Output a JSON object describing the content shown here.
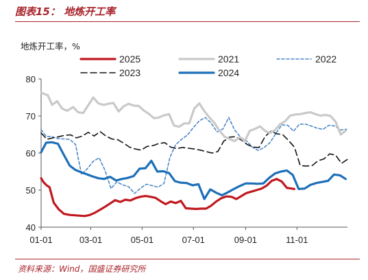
{
  "title": "图表15：  地炼开工率",
  "source": "资料来源：Wind，国盛证券研究所",
  "colors": {
    "accent": "#a8232b"
  },
  "chart_data": {
    "type": "line",
    "ylabel": "地炼开工率，%",
    "ylim": [
      40,
      80
    ],
    "yticks": [
      "40",
      "50",
      "60",
      "70",
      "80"
    ],
    "xticks": [
      "01-01",
      "03-01",
      "05-01",
      "07-01",
      "09-01",
      "11-01"
    ],
    "xlim": [
      "01-01",
      "12-31"
    ],
    "grid": false,
    "legend": "top",
    "series": [
      {
        "name": "2025",
        "color": "#c0181f",
        "dash": "solid",
        "width": 3.2,
        "x": [
          "01-01",
          "01-04",
          "01-08",
          "01-11",
          "01-16",
          "01-22",
          "01-28",
          "02-04",
          "02-10",
          "02-16",
          "02-22",
          "02-28",
          "03-06",
          "03-12",
          "03-18",
          "03-24",
          "03-30",
          "04-05",
          "04-11",
          "04-17",
          "04-23",
          "04-29",
          "05-05",
          "05-11",
          "05-17",
          "05-23",
          "05-29",
          "06-04",
          "06-10",
          "06-16",
          "06-22",
          "06-28",
          "07-04",
          "07-10",
          "07-16",
          "07-22",
          "07-28",
          "08-03",
          "08-09",
          "08-15",
          "08-21",
          "08-27",
          "09-02",
          "09-08",
          "09-14",
          "09-20",
          "09-26",
          "10-02",
          "10-08",
          "10-14",
          "10-20",
          "10-26",
          "10-29"
        ],
        "y": [
          53.2,
          52.1,
          51.2,
          50.8,
          46.6,
          44.8,
          43.6,
          43.3,
          43.2,
          43.1,
          43.0,
          43.3,
          43.9,
          44.7,
          45.5,
          46.4,
          47.3,
          46.8,
          47.4,
          47.2,
          47.8,
          48.2,
          48.4,
          48.2,
          47.9,
          47.0,
          46.2,
          46.9,
          46.5,
          47.1,
          45.1,
          45.0,
          44.9,
          45.0,
          45.0,
          45.8,
          46.9,
          47.8,
          48.3,
          48.2,
          47.6,
          48.4,
          49.2,
          49.6,
          50.0,
          50.4,
          51.2,
          52.5,
          53.0,
          52.3,
          50.6,
          50.4,
          50.3
        ]
      },
      {
        "name": "2021",
        "color": "#c9c9c9",
        "dash": "solid",
        "width": 3.2,
        "x": [
          "01-01",
          "01-05",
          "01-09",
          "01-14",
          "01-20",
          "01-26",
          "02-01",
          "02-08",
          "02-14",
          "02-20",
          "02-26",
          "03-04",
          "03-10",
          "03-16",
          "03-22",
          "03-28",
          "04-03",
          "04-09",
          "04-15",
          "04-21",
          "04-27",
          "05-03",
          "05-09",
          "05-15",
          "05-21",
          "05-27",
          "06-02",
          "06-08",
          "06-14",
          "06-20",
          "06-26",
          "07-02",
          "07-08",
          "07-14",
          "07-20",
          "07-26",
          "08-01",
          "08-07",
          "08-13",
          "08-19",
          "08-25",
          "08-31",
          "09-06",
          "09-12",
          "09-18",
          "09-24",
          "09-30",
          "10-06",
          "10-12",
          "10-18",
          "10-24",
          "10-30",
          "11-05",
          "11-11",
          "11-17",
          "11-23",
          "11-29",
          "12-05",
          "12-11",
          "12-17",
          "12-23",
          "12-29"
        ],
        "y": [
          76.3,
          75.9,
          75.6,
          73.0,
          74.0,
          72.0,
          71.4,
          72.4,
          71.0,
          70.8,
          72.9,
          75.0,
          73.4,
          73.0,
          73.3,
          73.5,
          71.2,
          72.6,
          73.3,
          72.8,
          72.7,
          71.5,
          70.6,
          69.4,
          69.6,
          70.2,
          70.5,
          67.4,
          67.1,
          68.0,
          68.0,
          72.0,
          73.4,
          71.3,
          69.6,
          68.1,
          66.0,
          64.4,
          63.8,
          63.2,
          64.3,
          63.2,
          66.0,
          66.5,
          67.2,
          66.0,
          65.4,
          66.2,
          67.8,
          68.6,
          70.1,
          70.4,
          70.5,
          70.8,
          71.0,
          70.5,
          70.1,
          70.3,
          70.0,
          68.4,
          65.0,
          66.0
        ]
      },
      {
        "name": "2022",
        "color": "#4a86c8",
        "dash": "dash",
        "width": 1.6,
        "x": [
          "01-01",
          "01-07",
          "01-14",
          "01-21",
          "01-28",
          "02-04",
          "02-11",
          "02-18",
          "02-25",
          "03-04",
          "03-11",
          "03-18",
          "03-25",
          "04-01",
          "04-08",
          "04-15",
          "04-22",
          "04-29",
          "05-06",
          "05-13",
          "05-20",
          "05-27",
          "06-03",
          "06-10",
          "06-17",
          "06-24",
          "07-01",
          "07-08",
          "07-15",
          "07-22",
          "07-29",
          "08-05",
          "08-12",
          "08-19",
          "08-26",
          "09-02",
          "09-09",
          "09-16",
          "09-23",
          "09-30",
          "10-07",
          "10-14",
          "10-21",
          "10-28",
          "11-04",
          "11-11",
          "11-18",
          "11-25",
          "12-02",
          "12-09",
          "12-16",
          "12-23",
          "12-30"
        ],
        "y": [
          66.3,
          64.5,
          64.4,
          63.9,
          63.8,
          63.7,
          62.3,
          54.2,
          55.8,
          57.8,
          58.7,
          55.3,
          50.4,
          52.2,
          51.4,
          50.9,
          49.1,
          50.5,
          51.6,
          51.2,
          50.8,
          51.8,
          58.8,
          62.3,
          63.7,
          64.9,
          66.9,
          68.7,
          69.6,
          68.1,
          65.7,
          66.5,
          69.6,
          66.2,
          64.3,
          63.3,
          61.6,
          60.7,
          61.5,
          62.8,
          65.3,
          67.6,
          67.5,
          65.9,
          67.8,
          67.8,
          67.3,
          66.7,
          66.4,
          67.5,
          67.3,
          66.2,
          66.4
        ]
      },
      {
        "name": "2023",
        "color": "#111111",
        "dash": "longdash",
        "width": 1.6,
        "x": [
          "01-01",
          "01-08",
          "01-15",
          "01-22",
          "01-29",
          "02-05",
          "02-12",
          "02-19",
          "02-26",
          "03-05",
          "03-12",
          "03-19",
          "03-26",
          "04-02",
          "04-09",
          "04-16",
          "04-23",
          "04-30",
          "05-07",
          "05-14",
          "05-21",
          "05-28",
          "06-04",
          "06-11",
          "06-18",
          "06-25",
          "07-02",
          "07-09",
          "07-16",
          "07-23",
          "07-30",
          "08-06",
          "08-13",
          "08-20",
          "08-27",
          "09-03",
          "09-10",
          "09-17",
          "09-24",
          "10-01",
          "10-08",
          "10-15",
          "10-22",
          "10-29",
          "11-05",
          "11-12",
          "11-19",
          "11-26",
          "12-03",
          "12-10",
          "12-17",
          "12-24",
          "12-31"
        ],
        "y": [
          65.4,
          63.7,
          64.1,
          64.4,
          64.8,
          64.9,
          64.1,
          64.6,
          65.6,
          64.6,
          65.8,
          64.6,
          63.8,
          63.6,
          62.7,
          61.6,
          61.1,
          60.8,
          61.8,
          62.0,
          62.6,
          62.8,
          61.6,
          61.2,
          61.5,
          61.3,
          61.1,
          60.8,
          60.4,
          60.0,
          60.4,
          63.2,
          64.3,
          64.4,
          63.5,
          62.3,
          61.6,
          61.5,
          64.4,
          65.9,
          65.2,
          65.0,
          63.4,
          61.6,
          56.6,
          56.5,
          56.6,
          57.9,
          58.4,
          59.8,
          59.4,
          57.2,
          58.3
        ]
      },
      {
        "name": "2024",
        "color": "#1d6fb8",
        "dash": "solid",
        "width": 3.2,
        "x": [
          "01-01",
          "01-07",
          "01-14",
          "01-21",
          "01-28",
          "02-04",
          "02-11",
          "02-18",
          "02-25",
          "03-03",
          "03-10",
          "03-17",
          "03-24",
          "03-31",
          "04-07",
          "04-14",
          "04-21",
          "04-28",
          "05-05",
          "05-12",
          "05-19",
          "05-26",
          "06-02",
          "06-09",
          "06-16",
          "06-23",
          "06-30",
          "07-07",
          "07-14",
          "07-21",
          "07-28",
          "08-04",
          "08-11",
          "08-18",
          "08-25",
          "09-01",
          "09-08",
          "09-15",
          "09-22",
          "09-29",
          "10-06",
          "10-13",
          "10-20",
          "10-27",
          "11-03",
          "11-10",
          "11-17",
          "11-24",
          "12-01",
          "12-08",
          "12-15",
          "12-22",
          "12-29"
        ],
        "y": [
          60.2,
          62.8,
          62.9,
          62.5,
          59.5,
          56.6,
          55.4,
          54.8,
          54.2,
          53.7,
          53.2,
          53.0,
          53.6,
          52.6,
          53.0,
          53.3,
          53.8,
          55.8,
          55.9,
          57.9,
          55.0,
          55.1,
          54.6,
          52.4,
          52.0,
          51.9,
          51.3,
          51.6,
          47.6,
          50.2,
          49.3,
          48.6,
          49.4,
          50.3,
          51.1,
          51.8,
          51.8,
          51.7,
          51.8,
          53.3,
          54.5,
          55.0,
          55.3,
          54.1,
          50.3,
          50.4,
          51.4,
          51.9,
          52.2,
          52.5,
          54.2,
          54.0,
          53.0
        ]
      }
    ]
  }
}
